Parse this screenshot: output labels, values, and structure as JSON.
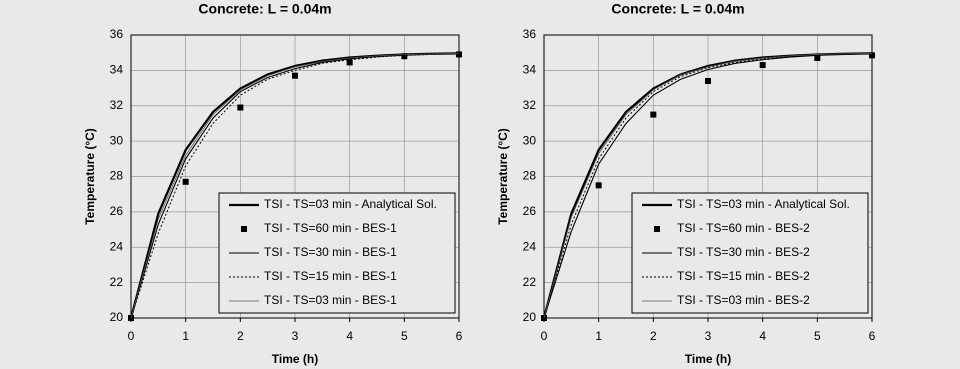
{
  "chart_data": [
    {
      "type": "line",
      "title": "Concrete: L = 0.04m",
      "x_label": "Time (h)",
      "y_label": "Temperature (°C)",
      "xlim": [
        0,
        6
      ],
      "ylim": [
        20,
        36
      ],
      "xticks": [
        0,
        1,
        2,
        3,
        4,
        5,
        6
      ],
      "yticks": [
        20,
        22,
        24,
        26,
        28,
        30,
        32,
        34,
        36
      ],
      "grid": true,
      "legend": "lower right",
      "x": [
        0,
        0.5,
        1,
        1.5,
        2,
        2.5,
        3,
        3.5,
        4,
        4.5,
        5,
        5.5,
        6
      ],
      "series": [
        {
          "name": "TSI - TS=03 min - Analytical Sol.",
          "color": "#000000",
          "style": "thick",
          "values": [
            20,
            25.9,
            29.5,
            31.65,
            32.97,
            33.77,
            34.25,
            34.55,
            34.73,
            34.83,
            34.9,
            34.94,
            34.96
          ]
        },
        {
          "name": "TSI - TS=60 min - BES-1",
          "color": "#000000",
          "style": "marker",
          "x": [
            0,
            1,
            2,
            3,
            4,
            5,
            6
          ],
          "values": [
            20,
            27.7,
            31.9,
            33.7,
            34.45,
            34.8,
            34.9
          ]
        },
        {
          "name": "TSI - TS=30 min - BES-1",
          "color": "#000000",
          "style": "solid",
          "values": [
            20,
            25.3,
            29.0,
            31.3,
            32.8,
            33.6,
            34.1,
            34.45,
            34.65,
            34.78,
            34.86,
            34.92,
            34.95
          ]
        },
        {
          "name": "TSI - TS=15 min - BES-1",
          "color": "#000000",
          "style": "dotted",
          "values": [
            20,
            24.8,
            28.6,
            31.0,
            32.6,
            33.5,
            34.0,
            34.4,
            34.6,
            34.75,
            34.85,
            34.9,
            34.94
          ]
        },
        {
          "name": "TSI - TS=03 min - BES-1",
          "color": "#555555",
          "style": "thin",
          "values": [
            20,
            25.6,
            29.2,
            31.5,
            32.9,
            33.7,
            34.2,
            34.5,
            34.7,
            34.82,
            34.89,
            34.93,
            34.96
          ]
        }
      ]
    },
    {
      "type": "line",
      "title": "Concrete: L = 0.04m",
      "x_label": "Time (h)",
      "y_label": "Temperature (°C)",
      "xlim": [
        0,
        6
      ],
      "ylim": [
        20,
        36
      ],
      "xticks": [
        0,
        1,
        2,
        3,
        4,
        5,
        6
      ],
      "yticks": [
        20,
        22,
        24,
        26,
        28,
        30,
        32,
        34,
        36
      ],
      "grid": true,
      "legend": "lower right",
      "x": [
        0,
        0.5,
        1,
        1.5,
        2,
        2.5,
        3,
        3.5,
        4,
        4.5,
        5,
        5.5,
        6
      ],
      "series": [
        {
          "name": "TSI - TS=03 min - Analytical Sol.",
          "color": "#000000",
          "style": "thick",
          "values": [
            20,
            25.9,
            29.5,
            31.65,
            32.97,
            33.77,
            34.25,
            34.55,
            34.73,
            34.83,
            34.9,
            34.94,
            34.96
          ]
        },
        {
          "name": "TSI - TS=60 min - BES-2",
          "color": "#000000",
          "style": "marker",
          "x": [
            0,
            1,
            2,
            3,
            4,
            5,
            6
          ],
          "values": [
            20,
            27.5,
            31.5,
            33.4,
            34.3,
            34.7,
            34.85
          ]
        },
        {
          "name": "TSI - TS=30 min - BES-2",
          "color": "#000000",
          "style": "solid",
          "values": [
            20,
            24.9,
            28.7,
            31.0,
            32.6,
            33.5,
            34.05,
            34.4,
            34.6,
            34.75,
            34.85,
            34.9,
            34.95
          ]
        },
        {
          "name": "TSI - TS=15 min - BES-2",
          "color": "#000000",
          "style": "dotted",
          "values": [
            20,
            25.3,
            29.0,
            31.3,
            32.8,
            33.65,
            34.15,
            34.45,
            34.65,
            34.78,
            34.86,
            34.92,
            34.95
          ]
        },
        {
          "name": "TSI - TS=03 min - BES-2",
          "color": "#555555",
          "style": "thin",
          "values": [
            20,
            25.7,
            29.3,
            31.5,
            32.9,
            33.75,
            34.2,
            34.52,
            34.7,
            34.82,
            34.9,
            34.94,
            34.96
          ]
        }
      ]
    }
  ]
}
